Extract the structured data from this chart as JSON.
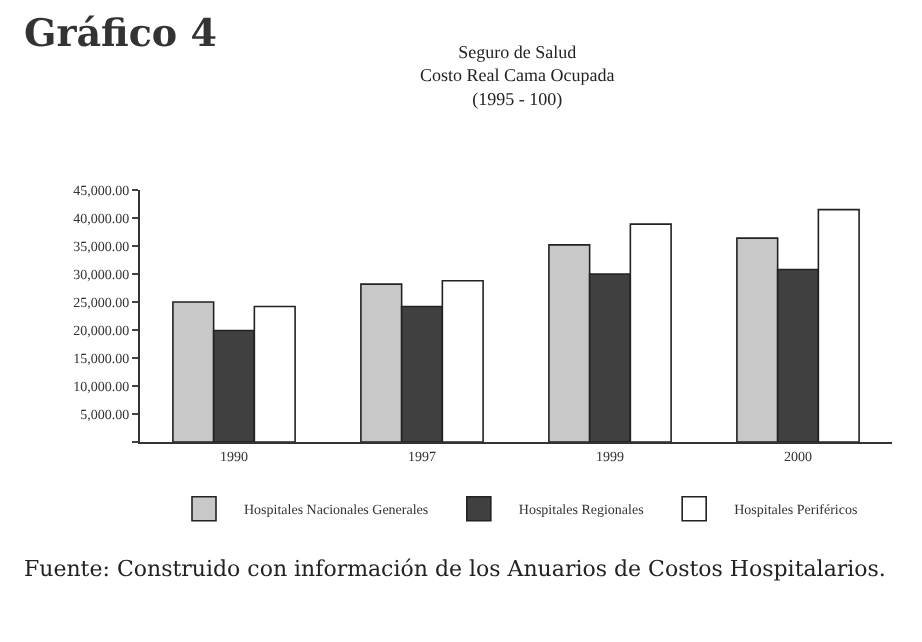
{
  "chart_data": {
    "type": "bar",
    "title": "Gráfico 4",
    "subtitle": "Seguro de Salud\nCosto Real Cama Ocupada\n(1995 - 100)",
    "categories": [
      "1990",
      "1997",
      "1999",
      "2000"
    ],
    "series": [
      {
        "name": "Hospitales Nacionales Generales",
        "color": "#c8c8c8",
        "values": [
          25000,
          28200,
          35200,
          36400
        ]
      },
      {
        "name": "Hospitales Regionales",
        "color": "#404040",
        "values": [
          19900,
          24200,
          30000,
          30800
        ]
      },
      {
        "name": "Hospitales Periféricos",
        "color": "#ffffff",
        "values": [
          24200,
          28800,
          38900,
          41500
        ]
      }
    ],
    "ylim": [
      0,
      45000
    ],
    "yticks": [
      {
        "value": 0,
        "label": null
      },
      {
        "value": 5000,
        "label": "5,000.00"
      },
      {
        "value": 10000,
        "label": "10,000.00"
      },
      {
        "value": 15000,
        "label": "15,000.00"
      },
      {
        "value": 20000,
        "label": "20,000.00"
      },
      {
        "value": 25000,
        "label": "25,000.00"
      },
      {
        "value": 30000,
        "label": "30,000.00"
      },
      {
        "value": 35000,
        "label": "35,000.00"
      },
      {
        "value": 40000,
        "label": "40,000.00"
      },
      {
        "value": 45000,
        "label": "45,000.00"
      }
    ],
    "legend": "bottom",
    "annotations": [
      "Fuente: Construido con información de los Anuarios de Costos Hospitalarios."
    ]
  }
}
